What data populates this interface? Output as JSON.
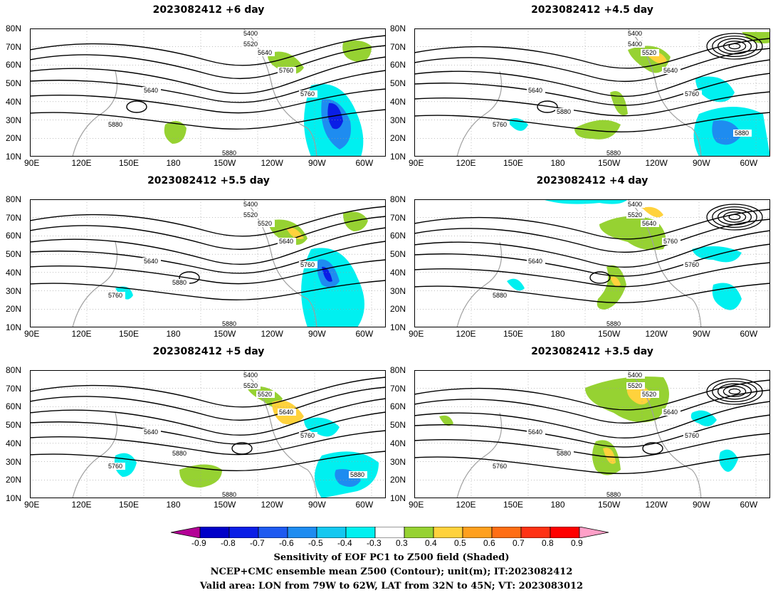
{
  "panels": [
    {
      "title": "2023082412  +6 day",
      "contours": [
        "5400",
        "5520",
        "5640",
        "5640",
        "5760",
        "5760",
        "5880",
        "5880"
      ]
    },
    {
      "title": "2023082412  +4.5 day",
      "contours": [
        "5400",
        "5400",
        "5520",
        "5640",
        "5640",
        "5760",
        "5760",
        "5880",
        "5880",
        "5880"
      ]
    },
    {
      "title": "2023082412  +5.5 day",
      "contours": [
        "5400",
        "5520",
        "5520",
        "5640",
        "5640",
        "5760",
        "5760",
        "5880",
        "5880"
      ]
    },
    {
      "title": "2023082412  +4 day",
      "contours": [
        "5400",
        "5520",
        "5640",
        "5640",
        "5760",
        "5760",
        "5880",
        "5880"
      ]
    },
    {
      "title": "2023082412  +5 day",
      "contours": [
        "5400",
        "5520",
        "5520",
        "5640",
        "5640",
        "5760",
        "5760",
        "5880",
        "5880",
        "5880"
      ]
    },
    {
      "title": "2023082412  +3.5 day",
      "contours": [
        "5400",
        "5520",
        "5520",
        "5640",
        "5640",
        "5760",
        "5760",
        "5880",
        "5880"
      ]
    }
  ],
  "lat_ticks": [
    "80N",
    "70N",
    "60N",
    "50N",
    "40N",
    "30N",
    "20N",
    "10N"
  ],
  "lon_ticks": [
    "90E",
    "120E",
    "150E",
    "180",
    "150W",
    "120W",
    "90W",
    "60W"
  ],
  "colorbar": {
    "labels": [
      "-0.9",
      "-0.8",
      "-0.7",
      "-0.6",
      "-0.5",
      "-0.4",
      "-0.3",
      "0.3",
      "0.4",
      "0.5",
      "0.6",
      "0.7",
      "0.8",
      "0.9"
    ],
    "colors": [
      "#b40096",
      "#0000c8",
      "#0a1ee6",
      "#1e5af0",
      "#1e8cf0",
      "#14c8f0",
      "#00f0f0",
      "#ffffff",
      "#96d232",
      "#ffd23c",
      "#ffa01e",
      "#ff6e14",
      "#ff3214",
      "#ff0000",
      "#ffa0c8"
    ]
  },
  "captions": {
    "line1": "Sensitivity of EOF PC1 to Z500 field (Shaded)",
    "line2": "NCEP+CMC ensemble mean Z500 (Contour); unit(m); IT:2023082412",
    "line3": "Valid area: LON from 79W to 62W, LAT from 32N to 45N; VT: 2023083012"
  }
}
